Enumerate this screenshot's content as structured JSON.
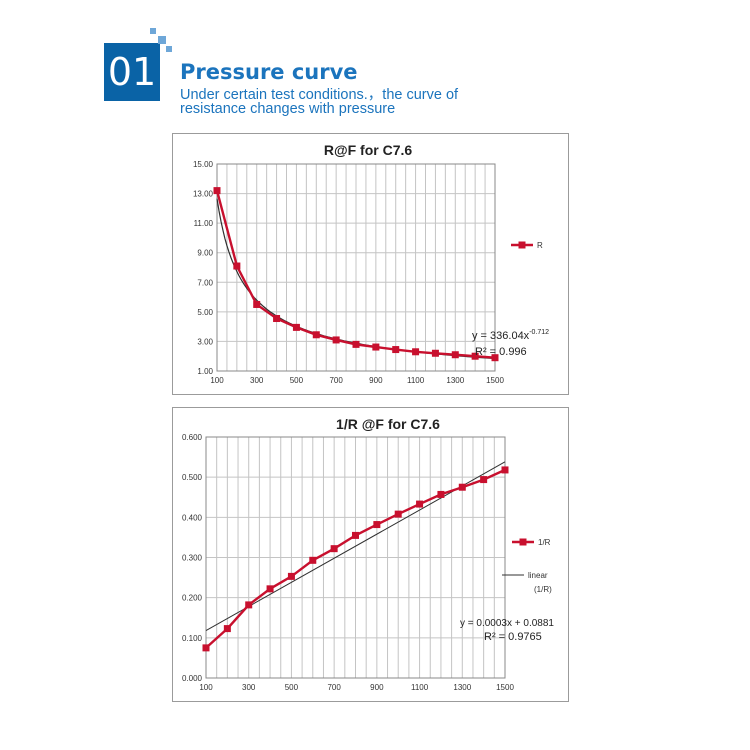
{
  "header": {
    "badge_number": "01",
    "title": "Pressure curve",
    "subtitle_lines": [
      "Under certain test conditions.，the curve of",
      "resistance changes with pressure"
    ]
  },
  "colors": {
    "accent_blue": "#1b74bd",
    "badge_blue": "#0a63a6",
    "series_red": "#c8102e",
    "trend_gray": "#303030"
  },
  "chart_data": [
    {
      "type": "line",
      "title": "R@F for C7.6",
      "xlabel": "",
      "ylabel": "",
      "x": [
        100,
        200,
        300,
        400,
        500,
        600,
        700,
        800,
        900,
        1000,
        1100,
        1200,
        1300,
        1400,
        1500
      ],
      "xticks": [
        "100",
        "300",
        "500",
        "700",
        "900",
        "1100",
        "1300",
        "1500"
      ],
      "xlim": [
        100,
        1500
      ],
      "yticks": [
        "1.00",
        "3.00",
        "5.00",
        "7.00",
        "9.00",
        "11.00",
        "13.00",
        "15.00"
      ],
      "ylim": [
        1,
        15
      ],
      "grid": true,
      "series": [
        {
          "name": "R",
          "values": [
            13.2,
            8.1,
            5.5,
            4.55,
            3.95,
            3.45,
            3.1,
            2.8,
            2.62,
            2.45,
            2.3,
            2.2,
            2.1,
            2.0,
            1.9
          ]
        }
      ],
      "trendline": {
        "kind": "power",
        "coef": 336.04,
        "exponent": -0.712
      },
      "legend_position": "right",
      "annotations": {
        "equation_prefix": "y = 336.04x",
        "equation_exponent": "-0.712",
        "r2": "R² = 0.996"
      }
    },
    {
      "type": "line",
      "title": "1/R @F for C7.6",
      "xlabel": "",
      "ylabel": "",
      "x": [
        100,
        200,
        300,
        400,
        500,
        600,
        700,
        800,
        900,
        1000,
        1100,
        1200,
        1300,
        1400,
        1500
      ],
      "xticks": [
        "100",
        "300",
        "500",
        "700",
        "900",
        "1100",
        "1300",
        "1500"
      ],
      "xlim": [
        100,
        1500
      ],
      "yticks": [
        "0.000",
        "0.100",
        "0.200",
        "0.300",
        "0.400",
        "0.500",
        "0.600"
      ],
      "ylim": [
        0,
        0.6
      ],
      "grid": true,
      "series": [
        {
          "name": "1/R",
          "values": [
            0.075,
            0.123,
            0.182,
            0.222,
            0.253,
            0.293,
            0.322,
            0.355,
            0.382,
            0.408,
            0.433,
            0.457,
            0.475,
            0.494,
            0.518
          ]
        }
      ],
      "trendline": {
        "kind": "linear",
        "name_lines": [
          "linear",
          "(1/R)"
        ],
        "slope": 0.0003,
        "intercept": 0.0881
      },
      "legend_position": "right",
      "annotations": {
        "equation": "y = 0.0003x + 0.0881",
        "r2": "R² = 0.9765"
      }
    }
  ]
}
